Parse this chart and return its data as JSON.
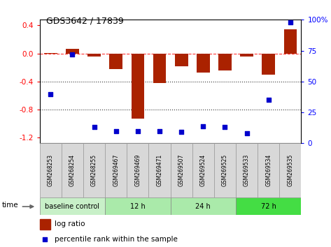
{
  "title": "GDS3642 / 17839",
  "samples": [
    "GSM268253",
    "GSM268254",
    "GSM268255",
    "GSM269467",
    "GSM269469",
    "GSM269471",
    "GSM269507",
    "GSM269524",
    "GSM269525",
    "GSM269533",
    "GSM269534",
    "GSM269535"
  ],
  "log_ratio": [
    0.01,
    0.07,
    -0.04,
    -0.22,
    -0.93,
    -0.42,
    -0.18,
    -0.27,
    -0.24,
    -0.04,
    -0.3,
    0.34
  ],
  "percentile_rank": [
    40,
    72,
    13,
    10,
    10,
    10,
    9,
    14,
    13,
    8,
    35,
    98
  ],
  "groups": [
    {
      "label": "baseline control",
      "start": 0,
      "end": 3,
      "color": "#c8f0c8"
    },
    {
      "label": "12 h",
      "start": 3,
      "end": 6,
      "color": "#aaeaaa"
    },
    {
      "label": "24 h",
      "start": 6,
      "end": 9,
      "color": "#aaeaaa"
    },
    {
      "label": "72 h",
      "start": 9,
      "end": 12,
      "color": "#44dd44"
    }
  ],
  "bar_color": "#aa2200",
  "dot_color": "#0000cc",
  "ylim_left": [
    -1.28,
    0.48
  ],
  "ylim_right": [
    0,
    100
  ],
  "yticks_left": [
    -1.2,
    -0.8,
    -0.4,
    0.0,
    0.4
  ],
  "yticks_right": [
    0,
    25,
    50,
    75,
    100
  ],
  "dotted_lines": [
    -0.4,
    -0.8
  ],
  "dashed_line": 0.0,
  "bg_color": "#ffffff",
  "time_label": "time",
  "label_box_color": "#d8d8d8",
  "plot_bg_color": "#ffffff"
}
